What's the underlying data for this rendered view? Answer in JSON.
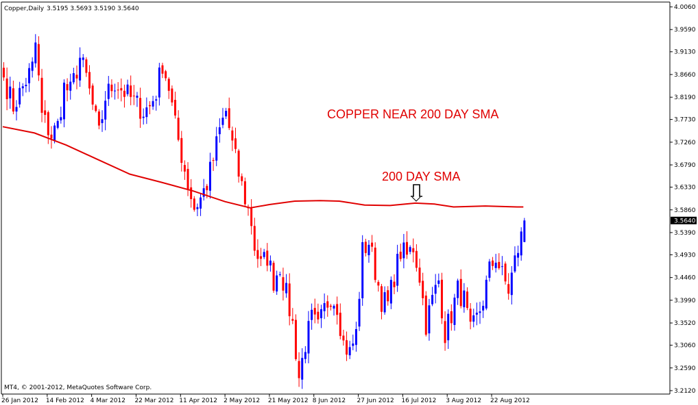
{
  "chart_data": {
    "type": "candlestick",
    "symbol_header": "Copper,Daily",
    "ohlc_header": "3.5195 3.5693 3.5190 3.5640",
    "footer": "MT4, © 2001-2012, MetaQuotes Software Corp.",
    "ylim": [
      3.212,
      4.006
    ],
    "y_ticks": [
      4.006,
      3.959,
      3.913,
      3.866,
      3.819,
      3.773,
      3.726,
      3.679,
      3.633,
      3.586,
      3.539,
      3.493,
      3.446,
      3.399,
      3.352,
      3.306,
      3.259,
      3.212
    ],
    "y_tick_labels": [
      "4.0060",
      "3.9590",
      "3.9130",
      "3.8660",
      "3.8190",
      "3.7730",
      "3.7260",
      "3.6790",
      "3.6330",
      "3.5860",
      "3.5390",
      "3.4930",
      "3.4460",
      "3.3990",
      "3.3520",
      "3.3060",
      "3.2590",
      "3.2120"
    ],
    "last_price": 3.564,
    "last_price_label": "3.5640",
    "x_labels": [
      {
        "bar": 0,
        "label": "26 Jan 2012"
      },
      {
        "bar": 14,
        "label": "14 Feb 2012"
      },
      {
        "bar": 28,
        "label": "4 Mar 2012"
      },
      {
        "bar": 42,
        "label": "22 Mar 2012"
      },
      {
        "bar": 56,
        "label": "11 Apr 2012"
      },
      {
        "bar": 70,
        "label": "2 May 2012"
      },
      {
        "bar": 84,
        "label": "21 May 2012"
      },
      {
        "bar": 98,
        "label": "8 Jun 2012"
      },
      {
        "bar": 112,
        "label": "27 Jun 2012"
      },
      {
        "bar": 126,
        "label": "16 Jul 2012"
      },
      {
        "bar": 140,
        "label": "3 Aug 2012"
      },
      {
        "bar": 154,
        "label": "22 Aug 2012"
      }
    ],
    "close_anchors": [
      [
        0,
        3.86
      ],
      [
        3,
        3.8
      ],
      [
        6,
        3.84
      ],
      [
        9,
        3.88
      ],
      [
        10,
        3.93
      ],
      [
        12,
        3.78
      ],
      [
        15,
        3.74
      ],
      [
        17,
        3.76
      ],
      [
        19,
        3.84
      ],
      [
        21,
        3.83
      ],
      [
        24,
        3.9
      ],
      [
        26,
        3.86
      ],
      [
        28,
        3.8
      ],
      [
        30,
        3.74
      ],
      [
        32,
        3.82
      ],
      [
        35,
        3.85
      ],
      [
        38,
        3.83
      ],
      [
        41,
        3.81
      ],
      [
        44,
        3.79
      ],
      [
        46,
        3.8
      ],
      [
        48,
        3.83
      ],
      [
        50,
        3.89
      ],
      [
        52,
        3.84
      ],
      [
        54,
        3.76
      ],
      [
        56,
        3.7
      ],
      [
        58,
        3.64
      ],
      [
        60,
        3.59
      ],
      [
        62,
        3.61
      ],
      [
        64,
        3.64
      ],
      [
        66,
        3.69
      ],
      [
        68,
        3.75
      ],
      [
        70,
        3.79
      ],
      [
        72,
        3.72
      ],
      [
        74,
        3.66
      ],
      [
        76,
        3.61
      ],
      [
        78,
        3.56
      ],
      [
        79,
        3.51
      ],
      [
        81,
        3.47
      ],
      [
        83,
        3.49
      ],
      [
        85,
        3.44
      ],
      [
        87,
        3.47
      ],
      [
        89,
        3.41
      ],
      [
        91,
        3.35
      ],
      [
        93,
        3.24
      ],
      [
        95,
        3.31
      ],
      [
        97,
        3.36
      ],
      [
        99,
        3.34
      ],
      [
        101,
        3.38
      ],
      [
        103,
        3.41
      ],
      [
        105,
        3.39
      ],
      [
        107,
        3.31
      ],
      [
        109,
        3.29
      ],
      [
        111,
        3.33
      ],
      [
        113,
        3.5
      ],
      [
        115,
        3.52
      ],
      [
        117,
        3.46
      ],
      [
        119,
        3.4
      ],
      [
        121,
        3.39
      ],
      [
        123,
        3.45
      ],
      [
        125,
        3.5
      ],
      [
        127,
        3.49
      ],
      [
        129,
        3.51
      ],
      [
        131,
        3.45
      ],
      [
        133,
        3.35
      ],
      [
        135,
        3.4
      ],
      [
        137,
        3.44
      ],
      [
        139,
        3.33
      ],
      [
        141,
        3.37
      ],
      [
        143,
        3.42
      ],
      [
        145,
        3.4
      ],
      [
        147,
        3.33
      ],
      [
        149,
        3.36
      ],
      [
        151,
        3.4
      ],
      [
        153,
        3.46
      ],
      [
        155,
        3.49
      ],
      [
        157,
        3.45
      ],
      [
        159,
        3.42
      ],
      [
        161,
        3.48
      ],
      [
        163,
        3.53
      ],
      [
        164,
        3.564
      ]
    ],
    "sma": {
      "name": "200 DAY SMA",
      "points": [
        [
          0,
          3.758
        ],
        [
          10,
          3.745
        ],
        [
          20,
          3.72
        ],
        [
          30,
          3.69
        ],
        [
          40,
          3.66
        ],
        [
          50,
          3.643
        ],
        [
          60,
          3.625
        ],
        [
          70,
          3.603
        ],
        [
          78,
          3.59
        ],
        [
          84,
          3.597
        ],
        [
          92,
          3.604
        ],
        [
          100,
          3.605
        ],
        [
          106,
          3.604
        ],
        [
          114,
          3.596
        ],
        [
          122,
          3.595
        ],
        [
          130,
          3.6
        ],
        [
          136,
          3.598
        ],
        [
          142,
          3.592
        ],
        [
          152,
          3.594
        ],
        [
          162,
          3.592
        ],
        [
          164,
          3.592
        ]
      ]
    },
    "annotations": [
      {
        "text": "COPPER NEAR 200 DAY SMA"
      },
      {
        "text": "200 DAY SMA"
      }
    ],
    "colors": {
      "up": "#0000ff",
      "down": "#ff0000",
      "sma": "#e00000",
      "annotation": "#e00000",
      "axis": "#000000",
      "background": "#ffffff"
    },
    "grid": false
  }
}
